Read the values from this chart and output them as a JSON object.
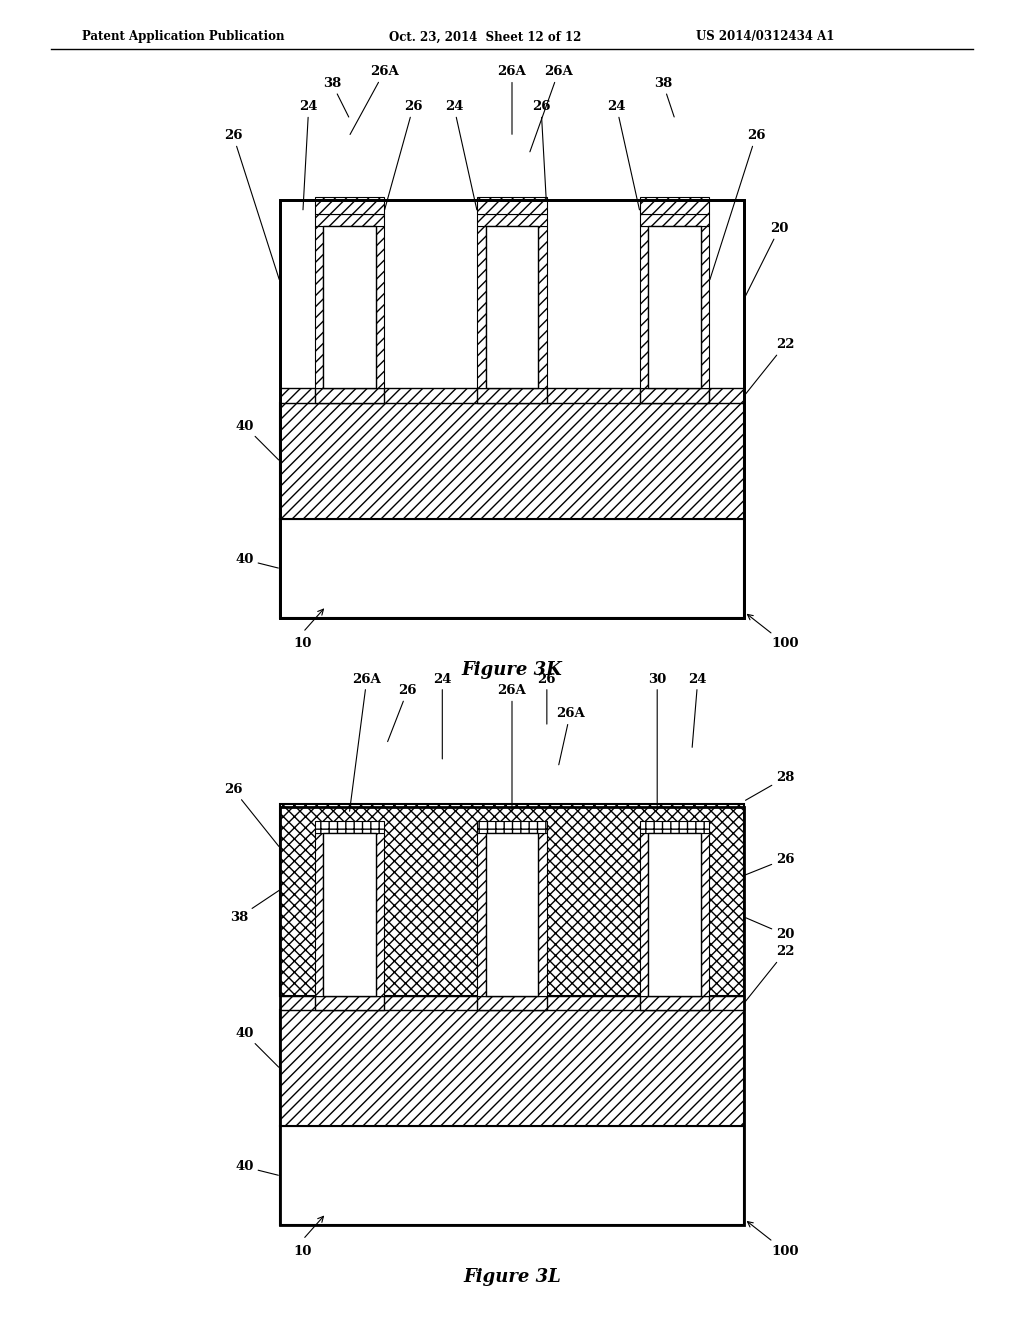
{
  "header_left": "Patent Application Publication",
  "header_mid": "Oct. 23, 2014  Sheet 12 of 12",
  "header_right": "US 2014/0312434 A1",
  "fig3k_label": "Figure 3K",
  "fig3l_label": "Figure 3L",
  "bg_color": "#ffffff"
}
